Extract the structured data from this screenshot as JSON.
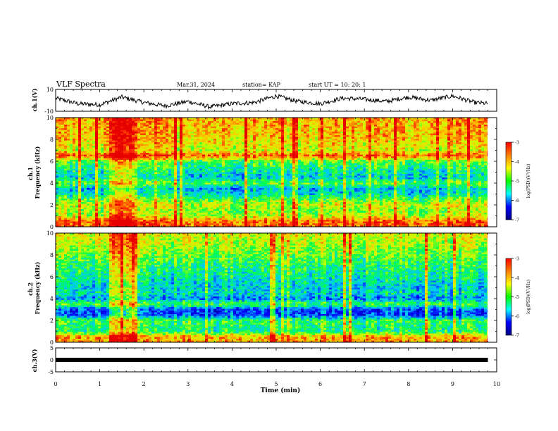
{
  "header": {
    "title": "VLF Spectra",
    "date": "Mar.31, 2024",
    "station": "station= KAP",
    "start": "start UT = 10: 20: 1"
  },
  "colorbar": {
    "label": "log(PSD)(V²/Hz)",
    "ticks": [
      "-3",
      "-4",
      "-5",
      "-6",
      "-7"
    ],
    "colors": [
      "#ff0000",
      "#ff8000",
      "#ffff00",
      "#00ff00",
      "#00ffff",
      "#0000ff",
      "#000080"
    ]
  },
  "chart_data": [
    {
      "type": "line",
      "name": "ch1-waveform",
      "ylabel": "ch.1(V)",
      "ylim": [
        -10,
        10
      ],
      "yticks": [
        "10",
        "-10"
      ],
      "xlim": [
        0,
        10
      ],
      "x_values": [
        0,
        0.5,
        1,
        1.5,
        2,
        2.5,
        3,
        3.5,
        4,
        4.5,
        5,
        5.5,
        6,
        6.5,
        7,
        7.5,
        8,
        8.5,
        9,
        9.5,
        9.8
      ],
      "y_values": [
        2,
        -3,
        -4,
        3,
        -2,
        -5,
        -1,
        -6,
        -3,
        -2,
        4,
        -1,
        -3,
        2,
        1,
        -1,
        3,
        0,
        4,
        -2,
        -3
      ]
    },
    {
      "type": "heatmap",
      "name": "ch1-spectrogram",
      "ylabel": "ch.1\nFrequency (kHz)",
      "ylim": [
        0,
        10
      ],
      "yticks": [
        "0",
        "2",
        "4",
        "6",
        "8",
        "10"
      ],
      "xlim": [
        0,
        10
      ],
      "log_psd_range": [
        -7,
        -3
      ],
      "freq_kHz": [
        10,
        9,
        8,
        7,
        6.5,
        6,
        5,
        4.5,
        4,
        3.5,
        3,
        2.5,
        2,
        1.5,
        1,
        0.5
      ],
      "mean_log_psd": [
        -3.8,
        -3.9,
        -4.0,
        -4.3,
        -3.4,
        -4.8,
        -5.3,
        -5.5,
        -4.7,
        -5.6,
        -5.4,
        -4.8,
        -4.3,
        -4.6,
        -4.4,
        -3.5
      ],
      "burst_x_range": [
        1.2,
        1.8
      ]
    },
    {
      "type": "heatmap",
      "name": "ch2-spectrogram",
      "ylabel": "ch.2\nFrequency (kHz)",
      "ylim": [
        0,
        10
      ],
      "yticks": [
        "0",
        "2",
        "4",
        "6",
        "8",
        "10"
      ],
      "xlim": [
        0,
        10
      ],
      "log_psd_range": [
        -7,
        -3
      ],
      "freq_kHz": [
        10,
        9,
        8,
        7,
        6,
        5,
        4.5,
        4,
        3.5,
        3,
        2.5,
        2,
        1.5,
        1,
        0.5
      ],
      "mean_log_psd": [
        -4.2,
        -4.4,
        -4.7,
        -5.0,
        -5.2,
        -5.5,
        -5.3,
        -5.8,
        -4.8,
        -6.0,
        -6.1,
        -4.9,
        -5.0,
        -5.1,
        -3.8
      ],
      "burst_x_range": [
        1.2,
        1.8
      ]
    },
    {
      "type": "line",
      "name": "ch3-waveform",
      "ylabel": "ch.3(V)",
      "ylim": [
        -5,
        5
      ],
      "yticks": [
        "5",
        "0",
        "-5"
      ],
      "xlim": [
        0,
        10
      ],
      "x_values": [
        0,
        9.8
      ],
      "y_values": [
        0,
        0
      ]
    }
  ],
  "xaxis": {
    "label": "Time (min)",
    "ticks": [
      "0",
      "1",
      "2",
      "3",
      "4",
      "5",
      "6",
      "7",
      "8",
      "9",
      "10"
    ]
  }
}
